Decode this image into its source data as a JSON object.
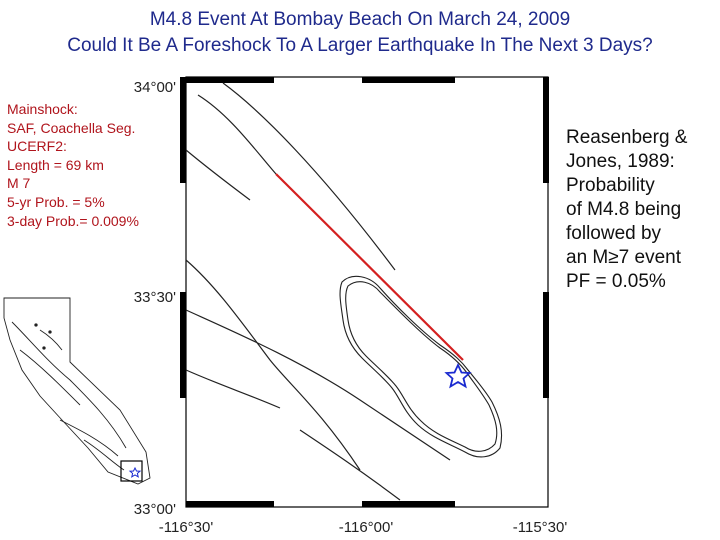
{
  "title": {
    "line1": "M4.8 Event At Bombay Beach On March 24, 2009",
    "line2": "Could It Be A Foreshock To A Larger Earthquake In The Next 3 Days?"
  },
  "mainshock_box": {
    "lines": [
      "Mainshock:",
      "SAF, Coachella Seg.",
      "UCERF2:",
      "Length = 69 km",
      "M 7",
      "5-yr Prob. = 5%",
      "3-day Prob.= 0.009%"
    ]
  },
  "probability_text": {
    "lines": [
      "Reasenberg &",
      "Jones, 1989:",
      "Probability",
      "of M4.8 being",
      "followed by",
      "an M≥7 event",
      "PF = 0.05%"
    ]
  },
  "map": {
    "lat_labels": [
      "34°00'",
      "33°30'",
      "33°00'"
    ],
    "lon_labels": [
      "-116°30'",
      "-116°00'",
      "-115°30'"
    ],
    "colors": {
      "rupture": "#d42020",
      "epicenter": "#1a2ad0",
      "fault": "#222222",
      "frame": "#000000",
      "title": "#1f2a8c",
      "mainshock_text": "#b0141c"
    },
    "epicenter_icon": "star-icon"
  }
}
